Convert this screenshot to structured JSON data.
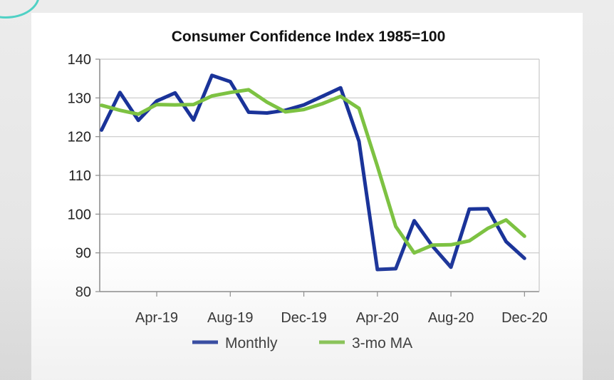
{
  "chart_data": {
    "type": "line",
    "title": "Consumer Confidence Index 1985=100",
    "xlabel": "",
    "ylabel": "",
    "ylim": [
      80,
      140
    ],
    "yticks": [
      80,
      90,
      100,
      110,
      120,
      130,
      140
    ],
    "xtick_labels": [
      "Apr-19",
      "Aug-19",
      "Dec-19",
      "Apr-20",
      "Aug-20",
      "Dec-20"
    ],
    "xtick_indices": [
      3,
      7,
      11,
      15,
      19,
      23
    ],
    "x": [
      "Jan-19",
      "Feb-19",
      "Mar-19",
      "Apr-19",
      "May-19",
      "Jun-19",
      "Jul-19",
      "Aug-19",
      "Sep-19",
      "Oct-19",
      "Nov-19",
      "Dec-19",
      "Jan-20",
      "Feb-20",
      "Mar-20",
      "Apr-20",
      "May-20",
      "Jun-20",
      "Jul-20",
      "Aug-20",
      "Sep-20",
      "Oct-20",
      "Nov-20",
      "Dec-20"
    ],
    "grid": true,
    "legend": "bottom",
    "series": [
      {
        "name": "Monthly",
        "color": "#1a3399",
        "values": [
          121.7,
          131.4,
          124.2,
          129.2,
          131.3,
          124.3,
          135.8,
          134.2,
          126.3,
          126.1,
          126.8,
          128.2,
          130.4,
          132.6,
          118.8,
          85.7,
          85.9,
          98.3,
          91.7,
          86.3,
          101.3,
          101.4,
          92.9,
          88.6
        ]
      },
      {
        "name": "3-mo MA",
        "color": "#7dc242",
        "values": [
          128.1,
          126.8,
          125.8,
          128.3,
          128.2,
          128.3,
          130.5,
          131.4,
          132.1,
          128.9,
          126.4,
          127.0,
          128.5,
          130.4,
          127.3,
          112.4,
          96.8,
          90.0,
          92.0,
          92.1,
          93.1,
          96.3,
          98.5,
          94.3
        ]
      }
    ]
  }
}
